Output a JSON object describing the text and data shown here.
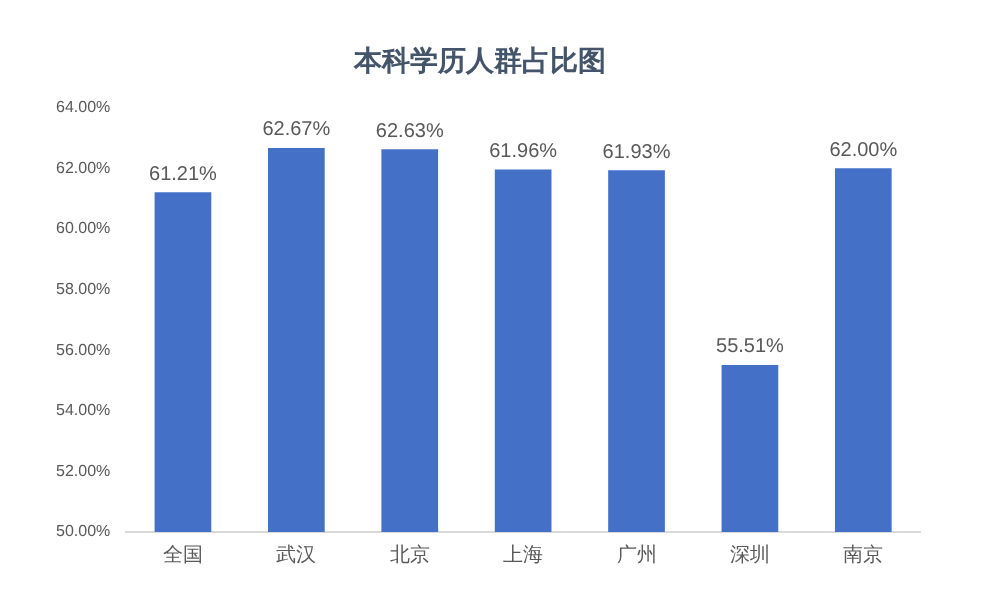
{
  "chart_data": {
    "type": "bar",
    "title": "本科学历人群占比图",
    "categories": [
      "全国",
      "武汉",
      "北京",
      "上海",
      "广州",
      "深圳",
      "南京"
    ],
    "values": [
      61.21,
      62.67,
      62.63,
      61.96,
      61.93,
      55.51,
      62.0
    ],
    "value_labels": [
      "61.21%",
      "62.67%",
      "62.63%",
      "61.96%",
      "61.93%",
      "55.51%",
      "62.00%"
    ],
    "color": "#4470c8",
    "ylim": [
      50,
      64
    ],
    "yticks": [
      {
        "value": 50,
        "label": "50.00%"
      },
      {
        "value": 52,
        "label": "52.00%"
      },
      {
        "value": 54,
        "label": "54.00%"
      },
      {
        "value": 56,
        "label": "56.00%"
      },
      {
        "value": 58,
        "label": "58.00%"
      },
      {
        "value": 60,
        "label": "60.00%"
      },
      {
        "value": 62,
        "label": "62.00%"
      },
      {
        "value": 64,
        "label": "64.00%"
      }
    ],
    "grid": false,
    "legend": false
  }
}
